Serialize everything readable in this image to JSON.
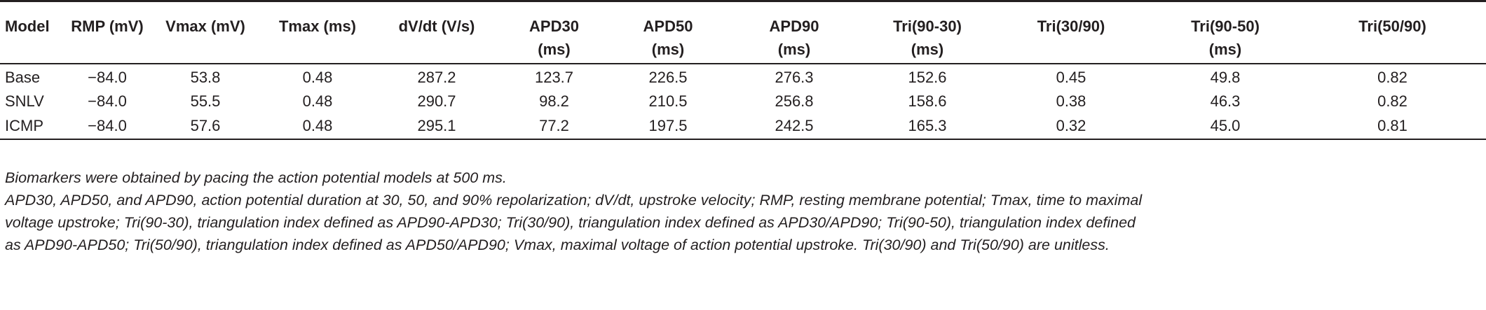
{
  "table": {
    "columns": [
      {
        "line1": "Model",
        "line2": ""
      },
      {
        "line1": "RMP (mV)",
        "line2": ""
      },
      {
        "line1": "Vmax (mV)",
        "line2": ""
      },
      {
        "line1": "Tmax (ms)",
        "line2": ""
      },
      {
        "line1": "dV/dt (V/s)",
        "line2": ""
      },
      {
        "line1": "APD30",
        "line2": "(ms)"
      },
      {
        "line1": "APD50",
        "line2": "(ms)"
      },
      {
        "line1": "APD90",
        "line2": "(ms)"
      },
      {
        "line1": "Tri(90-30)",
        "line2": "(ms)"
      },
      {
        "line1": "Tri(30/90)",
        "line2": ""
      },
      {
        "line1": "Tri(90-50)",
        "line2": "(ms)"
      },
      {
        "line1": "Tri(50/90)",
        "line2": ""
      }
    ],
    "rows": [
      [
        "Base",
        "−84.0",
        "53.8",
        "0.48",
        "287.2",
        "123.7",
        "226.5",
        "276.3",
        "152.6",
        "0.45",
        "49.8",
        "0.82"
      ],
      [
        "SNLV",
        "−84.0",
        "55.5",
        "0.48",
        "290.7",
        "98.2",
        "210.5",
        "256.8",
        "158.6",
        "0.38",
        "46.3",
        "0.82"
      ],
      [
        "ICMP",
        "−84.0",
        "57.6",
        "0.48",
        "295.1",
        "77.2",
        "197.5",
        "242.5",
        "165.3",
        "0.32",
        "45.0",
        "0.81"
      ]
    ]
  },
  "footnotes": {
    "note1": "Biomarkers were obtained by pacing the action potential models at 500 ms.",
    "note2_line1": "APD30, APD50, and APD90, action potential duration at 30, 50, and 90% repolarization; dV/dt, upstroke velocity; RMP, resting membrane potential; Tmax, time to maximal",
    "note2_line2": "voltage upstroke; Tri(90-30), triangulation index defined as APD90-APD30; Tri(30/90), triangulation index defined as APD30/APD90; Tri(90-50), triangulation index defined",
    "note2_line3": "as APD90-APD50; Tri(50/90), triangulation index defined as APD50/APD90; Vmax, maximal voltage of action potential upstroke. Tri(30/90) and Tri(50/90) are unitless."
  }
}
